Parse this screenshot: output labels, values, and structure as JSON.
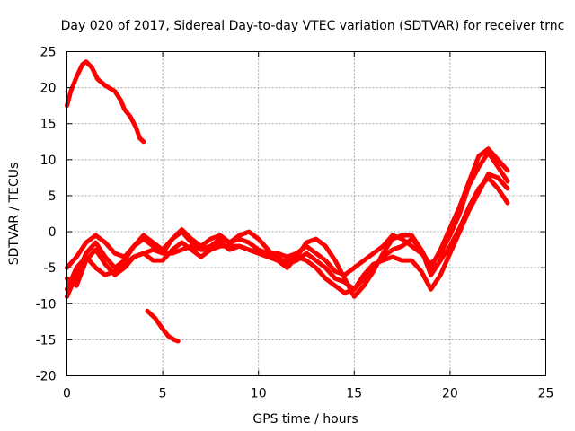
{
  "chart_data": {
    "type": "line",
    "title": "Day 020 of 2017, Sidereal Day-to-day VTEC variation (SDTVAR) for receiver trnc",
    "xlabel": "GPS time / hours",
    "ylabel": "SDTVAR / TECUs",
    "xlim": [
      0,
      25
    ],
    "ylim": [
      -20,
      25
    ],
    "xticks": [
      0,
      5,
      10,
      15,
      20,
      25
    ],
    "yticks": [
      -20,
      -15,
      -10,
      -5,
      0,
      5,
      10,
      15,
      20,
      25
    ],
    "grid": true,
    "color": "#ff0000",
    "series": [
      {
        "name": "arc-high-early",
        "x": [
          0.0,
          0.2,
          0.5,
          0.8,
          1.0,
          1.3,
          1.6,
          2.0,
          2.5,
          2.8,
          3.0,
          3.3,
          3.6,
          3.8,
          4.0
        ],
        "y": [
          17.5,
          19.5,
          21.5,
          23.2,
          23.6,
          22.8,
          21.2,
          20.3,
          19.5,
          18.3,
          17.0,
          16.0,
          14.5,
          13.0,
          12.5
        ]
      },
      {
        "name": "arc-low-early",
        "x": [
          4.2,
          4.6,
          5.0,
          5.3,
          5.6,
          5.8
        ],
        "y": [
          -11.0,
          -12.0,
          -13.5,
          -14.5,
          -15.0,
          -15.2
        ]
      },
      {
        "name": "track-a",
        "x": [
          0.0,
          0.5,
          1.0,
          1.5,
          2.0,
          2.5,
          3.0,
          3.5,
          4.0,
          4.5,
          5.0,
          5.5,
          6.0,
          6.5,
          7.0,
          7.5,
          8.0,
          8.5,
          9.0,
          9.5,
          10.0,
          10.5,
          11.0,
          11.5,
          12.0,
          12.5,
          13.0,
          13.5,
          14.0,
          14.5,
          15.0,
          15.5,
          16.0,
          16.5,
          17.0,
          17.5,
          18.0,
          18.5,
          19.0,
          19.5,
          20.0,
          20.5,
          21.0,
          21.5,
          22.0,
          22.5,
          23.0
        ],
        "y": [
          -5.0,
          -3.5,
          -1.5,
          -0.5,
          -1.5,
          -3.0,
          -3.5,
          -2.0,
          -1.0,
          -2.0,
          -3.0,
          -1.0,
          0.0,
          -1.5,
          -2.5,
          -2.0,
          -1.0,
          -1.5,
          -1.0,
          -1.5,
          -2.5,
          -3.0,
          -3.0,
          -3.5,
          -3.0,
          -2.0,
          -3.0,
          -4.0,
          -5.5,
          -6.0,
          -5.0,
          -4.0,
          -3.0,
          -2.0,
          -0.5,
          -1.0,
          -2.0,
          -3.0,
          -4.5,
          -3.0,
          -0.5,
          2.5,
          6.5,
          9.0,
          11.0,
          9.0,
          7.0
        ]
      },
      {
        "name": "track-b",
        "x": [
          0.0,
          0.5,
          1.0,
          1.5,
          2.0,
          2.5,
          3.0,
          3.5,
          4.0,
          4.5,
          5.0,
          5.5,
          6.0,
          6.5,
          7.0,
          7.5,
          8.0,
          8.5,
          9.0,
          9.5,
          10.0,
          10.5,
          11.0,
          11.5,
          12.0,
          12.5,
          13.0,
          13.5,
          14.0,
          14.5,
          15.0,
          15.5,
          16.0,
          16.5,
          17.0,
          17.5,
          18.0,
          18.5,
          19.0,
          19.5,
          20.0,
          20.5,
          21.0,
          21.5,
          22.0,
          22.5,
          23.0
        ],
        "y": [
          -9.0,
          -6.0,
          -3.0,
          -1.5,
          -3.5,
          -5.0,
          -4.0,
          -2.0,
          -0.5,
          -1.5,
          -2.5,
          -1.0,
          0.3,
          -1.0,
          -2.0,
          -1.0,
          -0.5,
          -1.5,
          -0.5,
          0.0,
          -1.0,
          -2.5,
          -4.0,
          -5.0,
          -3.5,
          -1.5,
          -1.0,
          -2.0,
          -4.0,
          -6.5,
          -9.0,
          -7.5,
          -5.5,
          -3.0,
          -1.0,
          -0.5,
          -0.5,
          -2.5,
          -5.0,
          -2.5,
          0.5,
          3.5,
          7.0,
          10.5,
          11.5,
          10.0,
          8.5
        ]
      },
      {
        "name": "track-c",
        "x": [
          0.0,
          0.5,
          1.0,
          1.5,
          2.0,
          2.5,
          3.0,
          3.5,
          4.0,
          4.5,
          5.0,
          5.5,
          6.0,
          6.5,
          7.0,
          7.5,
          8.0,
          8.5,
          9.0,
          9.5,
          10.0,
          10.5,
          11.0,
          11.5,
          12.0,
          12.5,
          13.0,
          13.5,
          14.0,
          14.5,
          15.0,
          15.5,
          16.0,
          16.5,
          17.0,
          17.5,
          18.0,
          18.5,
          19.0,
          19.5,
          20.0,
          20.5,
          21.0,
          21.5,
          22.0,
          22.5,
          23.0
        ],
        "y": [
          -6.5,
          -7.5,
          -4.0,
          -2.5,
          -4.5,
          -6.0,
          -5.0,
          -3.5,
          -3.0,
          -4.0,
          -4.0,
          -2.5,
          -1.5,
          -2.5,
          -3.5,
          -2.5,
          -1.5,
          -2.5,
          -2.0,
          -2.5,
          -3.0,
          -3.5,
          -3.5,
          -4.5,
          -4.0,
          -3.0,
          -4.0,
          -5.0,
          -6.5,
          -7.0,
          -8.0,
          -6.5,
          -5.0,
          -3.5,
          -2.5,
          -2.0,
          -1.0,
          -2.5,
          -6.0,
          -4.0,
          -2.0,
          0.5,
          3.5,
          6.0,
          7.5,
          6.0,
          4.0
        ]
      },
      {
        "name": "track-d",
        "x": [
          0.0,
          0.5,
          1.0,
          1.5,
          2.0,
          2.5,
          3.0,
          3.5,
          4.0,
          4.5,
          5.0,
          5.5,
          6.0,
          6.5,
          7.0,
          7.5,
          8.0,
          8.5,
          9.0,
          9.5,
          10.0,
          10.5,
          11.0,
          11.5,
          12.0,
          12.5,
          13.0,
          13.5,
          14.0,
          14.5,
          15.0,
          15.5,
          16.0,
          16.5,
          17.0,
          17.5,
          18.0,
          18.5,
          19.0,
          19.5,
          20.0,
          20.5,
          21.0,
          21.5,
          22.0,
          22.5,
          23.0
        ],
        "y": [
          -8.0,
          -5.0,
          -3.5,
          -5.0,
          -6.0,
          -5.5,
          -4.5,
          -3.5,
          -3.0,
          -2.5,
          -3.0,
          -3.0,
          -2.5,
          -2.0,
          -2.5,
          -2.5,
          -2.0,
          -2.0,
          -2.0,
          -2.5,
          -3.0,
          -3.5,
          -4.0,
          -4.0,
          -3.5,
          -4.0,
          -5.0,
          -6.5,
          -7.5,
          -8.5,
          -8.0,
          -6.0,
          -4.5,
          -4.0,
          -3.5,
          -4.0,
          -4.0,
          -5.5,
          -8.0,
          -6.0,
          -3.0,
          0.0,
          3.0,
          5.5,
          8.0,
          7.5,
          6.0
        ]
      }
    ]
  }
}
